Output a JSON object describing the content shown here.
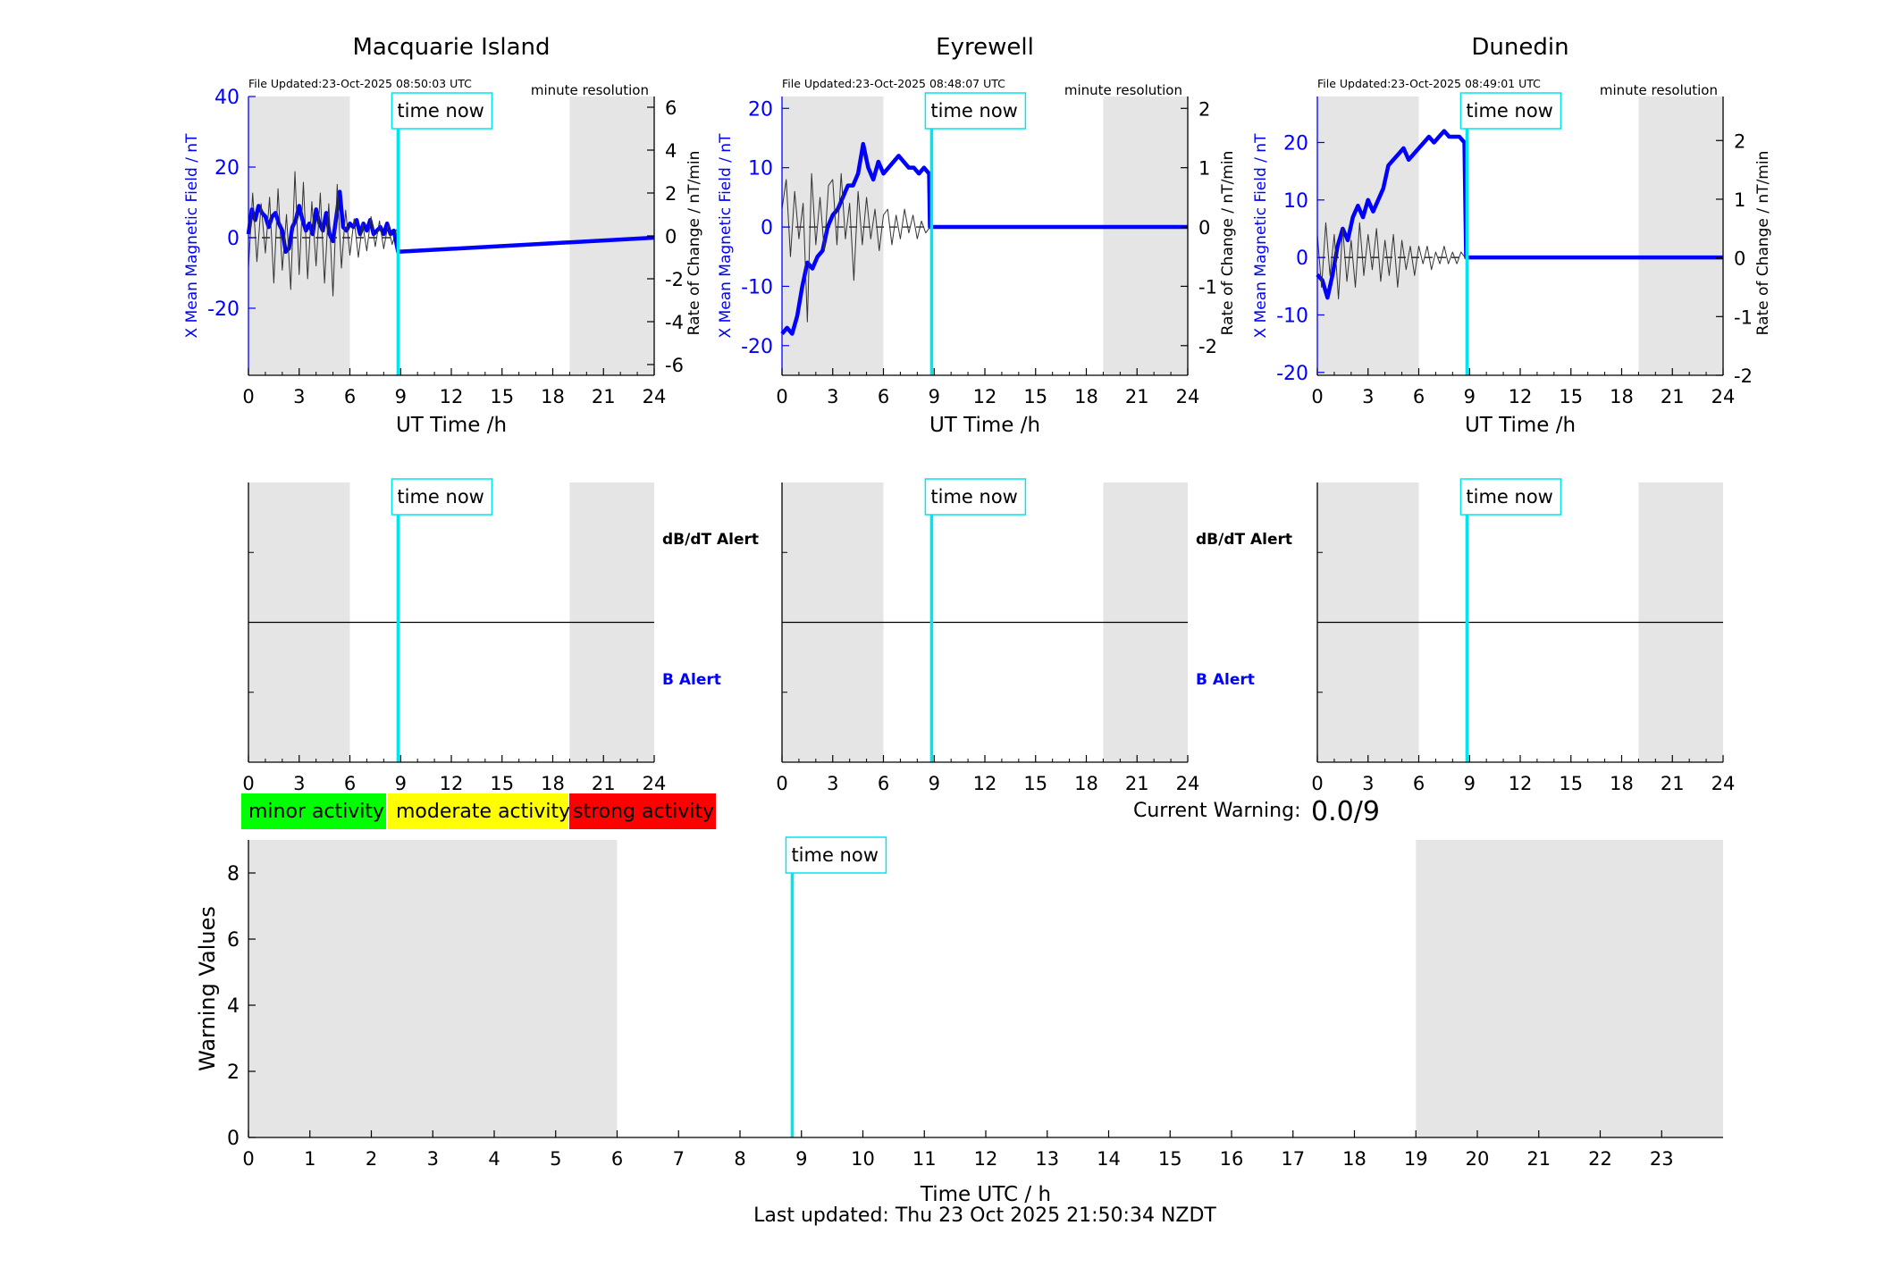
{
  "footer": {
    "last_updated": "Last updated: Thu 23 Oct 2025 21:50:34 NZDT"
  },
  "legend": {
    "minor": "minor activity",
    "moderate": "moderate activity",
    "strong": "strong activity",
    "colors": {
      "minor": "#00ff00",
      "moderate": "#ffff00",
      "strong": "#ff0000"
    }
  },
  "current_warning": {
    "label": "Current Warning:",
    "value": "0.0/9"
  },
  "colors": {
    "field": "#0000ff",
    "rate": "#333333",
    "time_now": "#00e5ee",
    "night": "#e5e5e5"
  },
  "chart_data": [
    {
      "type": "line",
      "title": "Macquarie Island",
      "file_updated": "File Updated:23-Oct-2025 08:50:03 UTC",
      "resolution": "minute resolution",
      "time_now_label": "time now",
      "time_now": 8.85,
      "night_bands": [
        [
          0,
          6
        ],
        [
          19,
          24
        ]
      ],
      "xlabel": "UT Time /h",
      "xlim": [
        0,
        24
      ],
      "xticks": [
        0,
        3,
        6,
        9,
        12,
        15,
        18,
        21,
        24
      ],
      "ylabel": "X Mean Magnetic Field / nT",
      "ylim": [
        -39,
        40
      ],
      "yticks": [
        -20,
        0,
        20,
        40
      ],
      "y2label": "Rate of Change / nT/min",
      "y2lim": [
        -6.5,
        6.5
      ],
      "y2ticks": [
        -6,
        -4,
        -2,
        0,
        2,
        4,
        6
      ],
      "series": [
        {
          "name": "X Mean Magnetic Field",
          "x": [
            0,
            0.2,
            0.4,
            0.6,
            0.8,
            1.0,
            1.2,
            1.4,
            1.6,
            1.8,
            2.0,
            2.2,
            2.4,
            2.6,
            2.8,
            3.0,
            3.2,
            3.4,
            3.6,
            3.8,
            4.0,
            4.2,
            4.4,
            4.6,
            4.8,
            5.0,
            5.2,
            5.4,
            5.6,
            5.8,
            6.0,
            6.2,
            6.4,
            6.6,
            6.8,
            7.0,
            7.2,
            7.4,
            7.6,
            7.8,
            8.0,
            8.2,
            8.4,
            8.6,
            8.85,
            24
          ],
          "values": [
            1,
            8,
            5,
            9,
            7,
            6,
            3,
            6,
            7,
            4,
            2,
            -4,
            -3,
            3,
            5,
            9,
            5,
            2,
            4,
            1,
            8,
            4,
            2,
            7,
            1,
            -1,
            6,
            13,
            3,
            2,
            4,
            3,
            5,
            1,
            4,
            2,
            5,
            1,
            2,
            3,
            1,
            4,
            1,
            2,
            -4,
            0
          ]
        },
        {
          "name": "Rate of Change",
          "axis": "right",
          "x": [
            0,
            0.25,
            0.5,
            0.75,
            1.0,
            1.25,
            1.5,
            1.75,
            2.0,
            2.25,
            2.5,
            2.75,
            3.0,
            3.25,
            3.5,
            3.75,
            4.0,
            4.25,
            4.5,
            4.75,
            5.0,
            5.25,
            5.5,
            5.75,
            6.0,
            6.25,
            6.5,
            6.75,
            7.0,
            7.25,
            7.5,
            7.75,
            8.0,
            8.25,
            8.5,
            8.75
          ],
          "values": [
            -1.5,
            2.0,
            -1.2,
            1.5,
            -0.8,
            1.8,
            -2.2,
            2.2,
            -1.6,
            1.0,
            -2.5,
            3.0,
            -1.8,
            2.5,
            -2.0,
            1.6,
            -1.4,
            2.0,
            -2.2,
            1.5,
            -2.8,
            2.4,
            -1.5,
            1.2,
            -0.9,
            0.8,
            -1.0,
            0.6,
            -0.7,
            0.9,
            -0.5,
            0.7,
            -0.6,
            0.5,
            -0.4,
            0.3
          ]
        }
      ]
    },
    {
      "type": "line",
      "title": "Eyrewell",
      "file_updated": "File Updated:23-Oct-2025 08:48:07 UTC",
      "resolution": "minute resolution",
      "time_now_label": "time now",
      "time_now": 8.85,
      "night_bands": [
        [
          0,
          6
        ],
        [
          19,
          24
        ]
      ],
      "xlabel": "UT Time /h",
      "xlim": [
        0,
        24
      ],
      "xticks": [
        0,
        3,
        6,
        9,
        12,
        15,
        18,
        21,
        24
      ],
      "ylabel": "X Mean Magnetic Field / nT",
      "ylim": [
        -25,
        22
      ],
      "yticks": [
        -20,
        -10,
        0,
        10,
        20
      ],
      "y2label": "Rate of Change / nT/min",
      "y2lim": [
        -2.5,
        2.2
      ],
      "y2ticks": [
        -2,
        -1,
        0,
        1,
        2
      ],
      "series": [
        {
          "name": "X Mean Magnetic Field",
          "x": [
            0,
            0.3,
            0.6,
            0.9,
            1.2,
            1.5,
            1.8,
            2.1,
            2.4,
            2.7,
            3.0,
            3.3,
            3.6,
            3.9,
            4.2,
            4.5,
            4.8,
            5.1,
            5.4,
            5.7,
            6.0,
            6.3,
            6.6,
            6.9,
            7.2,
            7.5,
            7.8,
            8.1,
            8.4,
            8.7,
            8.75,
            24
          ],
          "values": [
            -18,
            -17,
            -18,
            -15,
            -10,
            -6,
            -7,
            -5,
            -4,
            0,
            2,
            3,
            5,
            7,
            7,
            9,
            14,
            10,
            8,
            11,
            9,
            10,
            11,
            12,
            11,
            10,
            10,
            9,
            10,
            9,
            0,
            0
          ]
        },
        {
          "name": "Rate of Change",
          "axis": "right",
          "x": [
            0,
            0.25,
            0.5,
            0.75,
            1.0,
            1.25,
            1.5,
            1.75,
            2.0,
            2.25,
            2.5,
            2.75,
            3.0,
            3.25,
            3.5,
            3.75,
            4.0,
            4.25,
            4.5,
            4.75,
            5.0,
            5.25,
            5.5,
            5.75,
            6.0,
            6.25,
            6.5,
            6.75,
            7.0,
            7.25,
            7.5,
            7.75,
            8.0,
            8.25,
            8.5,
            8.75
          ],
          "values": [
            0.3,
            0.8,
            -0.5,
            0.6,
            -0.2,
            0.4,
            -1.6,
            0.9,
            -0.3,
            0.5,
            -0.4,
            0.7,
            0.8,
            -0.3,
            0.9,
            -0.2,
            0.4,
            -0.9,
            0.6,
            -0.3,
            0.5,
            -0.2,
            0.3,
            -0.4,
            0.2,
            0.3,
            -0.3,
            0.2,
            -0.2,
            0.3,
            -0.1,
            0.2,
            -0.2,
            0.1,
            -0.1,
            0.0
          ]
        }
      ]
    },
    {
      "type": "line",
      "title": "Dunedin",
      "file_updated": "File Updated:23-Oct-2025 08:49:01 UTC",
      "resolution": "minute resolution",
      "time_now_label": "time now",
      "time_now": 8.85,
      "night_bands": [
        [
          0,
          6
        ],
        [
          19,
          24
        ]
      ],
      "xlabel": "UT Time /h",
      "xlim": [
        0,
        24
      ],
      "xticks": [
        0,
        3,
        6,
        9,
        12,
        15,
        18,
        21,
        24
      ],
      "ylabel": "X Mean Magnetic Field / nT",
      "ylim": [
        -20.5,
        28
      ],
      "yticks": [
        -20,
        -10,
        0,
        10,
        20
      ],
      "y2label": "Rate of Change / nT/min",
      "y2lim": [
        -2.0,
        2.75
      ],
      "y2ticks": [
        -2,
        -1,
        0,
        1,
        2
      ],
      "series": [
        {
          "name": "X Mean Magnetic Field",
          "x": [
            0,
            0.3,
            0.6,
            0.9,
            1.2,
            1.5,
            1.8,
            2.1,
            2.4,
            2.7,
            3.0,
            3.3,
            3.6,
            3.9,
            4.2,
            4.5,
            4.8,
            5.1,
            5.4,
            5.7,
            6.0,
            6.3,
            6.6,
            6.9,
            7.2,
            7.5,
            7.8,
            8.1,
            8.4,
            8.7,
            8.8,
            24
          ],
          "values": [
            -3,
            -4,
            -7,
            -3,
            2,
            5,
            3,
            7,
            9,
            7,
            10,
            8,
            10,
            12,
            16,
            17,
            18,
            19,
            17,
            18,
            19,
            20,
            21,
            20,
            21,
            22,
            21,
            21,
            21,
            20,
            0,
            0
          ]
        },
        {
          "name": "Rate of Change",
          "axis": "right",
          "x": [
            0,
            0.25,
            0.5,
            0.75,
            1.0,
            1.25,
            1.5,
            1.75,
            2.0,
            2.25,
            2.5,
            2.75,
            3.0,
            3.25,
            3.5,
            3.75,
            4.0,
            4.25,
            4.5,
            4.75,
            5.0,
            5.25,
            5.5,
            5.75,
            6.0,
            6.25,
            6.5,
            6.75,
            7.0,
            7.25,
            7.5,
            7.75,
            8.0,
            8.25,
            8.5,
            8.75
          ],
          "values": [
            0.4,
            -0.5,
            0.6,
            -0.3,
            0.4,
            -0.7,
            0.5,
            -0.4,
            0.3,
            -0.5,
            0.6,
            -0.3,
            0.4,
            -0.2,
            0.5,
            -0.4,
            0.3,
            -0.3,
            0.4,
            -0.5,
            0.3,
            -0.2,
            0.2,
            -0.3,
            0.2,
            -0.1,
            0.2,
            -0.2,
            0.1,
            -0.1,
            0.2,
            -0.1,
            0.1,
            -0.1,
            0.1,
            0.0
          ]
        }
      ]
    },
    {
      "type": "line",
      "title": "",
      "alert_top": "dB/dT Alert",
      "alert_bottom": "B Alert",
      "time_now_label": "time now",
      "time_now": 8.85,
      "night_bands": [
        [
          0,
          6
        ],
        [
          19,
          24
        ]
      ],
      "xlim": [
        0,
        24
      ],
      "xticks": [
        0,
        3,
        6,
        9,
        12,
        15,
        18,
        21,
        24
      ],
      "ylim": [
        0,
        1
      ],
      "divider": 0.5
    },
    {
      "type": "line",
      "title": "",
      "time_now_label": "time now",
      "time_now": 8.85,
      "night_bands": [
        [
          0,
          6
        ],
        [
          19,
          24
        ]
      ],
      "xlim": [
        0,
        24
      ],
      "xticks": [
        0,
        3,
        6,
        9,
        12,
        15,
        18,
        21,
        24
      ],
      "ylim": [
        0,
        1
      ],
      "divider": 0.5
    },
    {
      "type": "line",
      "title": "",
      "time_now_label": "time now",
      "time_now": 8.85,
      "night_bands": [
        [
          0,
          6
        ],
        [
          19,
          24
        ]
      ],
      "xlim": [
        0,
        24
      ],
      "xticks": [
        0,
        3,
        6,
        9,
        12,
        15,
        18,
        21,
        24
      ],
      "ylim": [
        0,
        1
      ],
      "divider": 0.5
    },
    {
      "type": "line",
      "title": "",
      "xlabel": "Time UTC / h",
      "ylabel": "Warning Values",
      "time_now_label": "time now",
      "time_now": 8.85,
      "night_bands": [
        [
          0,
          6
        ],
        [
          19,
          24
        ]
      ],
      "xlim": [
        0,
        24
      ],
      "xticks": [
        0,
        1,
        2,
        3,
        4,
        5,
        6,
        7,
        8,
        9,
        10,
        11,
        12,
        13,
        14,
        15,
        16,
        17,
        18,
        19,
        20,
        21,
        22,
        23
      ],
      "ylim": [
        0,
        9
      ],
      "yticks": [
        0,
        2,
        4,
        6,
        8
      ],
      "series": []
    }
  ]
}
